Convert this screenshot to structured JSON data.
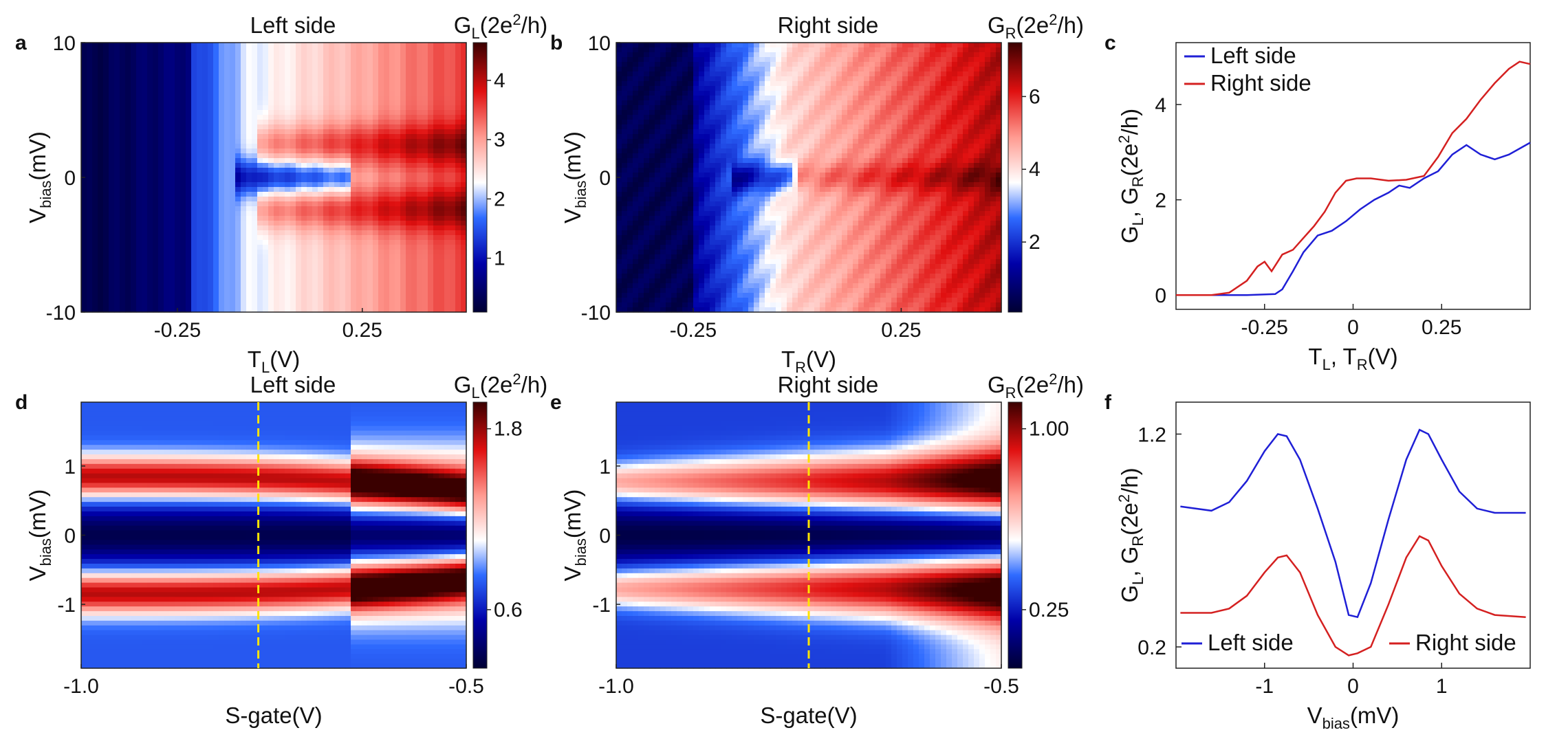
{
  "panels": {
    "a": {
      "letter": "a",
      "title": "Left side",
      "cb_label": {
        "pre": "G",
        "sub": "L",
        "mid": "(2e",
        "sup": "2",
        "post": "/h)"
      },
      "xlabel": {
        "main": "T",
        "sub": "L",
        "post": "(V)"
      },
      "ylabel": {
        "main": "V",
        "sub": "bias",
        "post": "(mV)"
      },
      "xticks": [
        "-0.25",
        "0.25"
      ],
      "yticks": [
        "10",
        "0",
        "-10"
      ],
      "cbticks": [
        "4",
        "3",
        "2",
        "1"
      ]
    },
    "b": {
      "letter": "b",
      "title": "Right side",
      "cb_label": {
        "pre": "G",
        "sub": "R",
        "mid": "(2e",
        "sup": "2",
        "post": "/h)"
      },
      "xlabel": {
        "main": "T",
        "sub": "R",
        "post": "(V)"
      },
      "ylabel": {
        "main": "V",
        "sub": "bias",
        "post": "(mV)"
      },
      "xticks": [
        "-0.25",
        "0.25"
      ],
      "yticks": [
        "10",
        "0",
        "-10"
      ],
      "cbticks": [
        "6",
        "4",
        "2"
      ]
    },
    "d": {
      "letter": "d",
      "title": "Left side",
      "cb_label": {
        "pre": "G",
        "sub": "L",
        "mid": "(2e",
        "sup": "2",
        "post": "/h)"
      },
      "xlabel": {
        "main": "S-gate(V)"
      },
      "ylabel": {
        "main": "V",
        "sub": "bias",
        "post": "(mV)"
      },
      "xticks": [
        "-1.0",
        "-0.5"
      ],
      "yticks": [
        "1",
        "0",
        "-1"
      ],
      "cbticks": [
        "1.8",
        "0.6"
      ]
    },
    "e": {
      "letter": "e",
      "title": "Right side",
      "cb_label": {
        "pre": "G",
        "sub": "R",
        "mid": "(2e",
        "sup": "2",
        "post": "/h)"
      },
      "xlabel": {
        "main": "S-gate(V)"
      },
      "ylabel": {
        "main": "V",
        "sub": "bias",
        "post": "(mV)"
      },
      "xticks": [
        "-1.0",
        "-0.5"
      ],
      "yticks": [
        "1",
        "0",
        "-1"
      ],
      "cbticks": [
        "1.00",
        "0.25"
      ]
    },
    "c": {
      "letter": "c",
      "xlabel": {
        "a": "T",
        "asub": "L",
        "b": ", T",
        "bsub": "R",
        "post": "(V)"
      },
      "ylabel": {
        "a": "G",
        "asub": "L",
        "b": ", G",
        "bsub": "R",
        "c": "(2e",
        "sup": "2",
        "post": "/h)"
      }
    },
    "f": {
      "letter": "f",
      "xlabel": {
        "main": "V",
        "sub": "bias",
        "post": "(mV)"
      },
      "ylabel": {
        "a": "G",
        "asub": "L",
        "b": ", G",
        "bsub": "R",
        "c": "(2e",
        "sup": "2",
        "post": "/h)"
      }
    }
  },
  "colors": {
    "left": "#1f1fd6",
    "right": "#d42020",
    "marker": "#ffe400"
  },
  "chart_data": [
    {
      "id": "c",
      "type": "line",
      "xlim": [
        -0.5,
        0.5
      ],
      "ylim": [
        -0.3,
        5.3
      ],
      "xticks": [
        -0.25,
        0,
        0.25
      ],
      "xticklabels": [
        "-0.25",
        "0",
        "0.25"
      ],
      "yticks": [
        0,
        2,
        4
      ],
      "yticklabels": [
        "0",
        "2",
        "4"
      ],
      "legend": "top-left",
      "series": [
        {
          "name": "Left side",
          "color": "#1f1fd6",
          "x": [
            -0.5,
            -0.3,
            -0.22,
            -0.2,
            -0.17,
            -0.14,
            -0.1,
            -0.06,
            -0.02,
            0.02,
            0.06,
            0.1,
            0.13,
            0.16,
            0.2,
            0.24,
            0.28,
            0.32,
            0.36,
            0.4,
            0.44,
            0.5
          ],
          "y": [
            0,
            0,
            0.02,
            0.12,
            0.5,
            0.9,
            1.25,
            1.35,
            1.55,
            1.8,
            2.0,
            2.15,
            2.3,
            2.25,
            2.45,
            2.6,
            2.95,
            3.15,
            2.95,
            2.85,
            2.95,
            3.2
          ]
        },
        {
          "name": "Right side",
          "color": "#d42020",
          "x": [
            -0.5,
            -0.4,
            -0.35,
            -0.3,
            -0.27,
            -0.25,
            -0.23,
            -0.2,
            -0.17,
            -0.14,
            -0.11,
            -0.08,
            -0.05,
            -0.02,
            0.01,
            0.05,
            0.1,
            0.15,
            0.2,
            0.24,
            0.28,
            0.32,
            0.36,
            0.4,
            0.44,
            0.47,
            0.5
          ],
          "y": [
            0,
            0,
            0.05,
            0.3,
            0.6,
            0.7,
            0.5,
            0.85,
            0.95,
            1.2,
            1.45,
            1.75,
            2.15,
            2.4,
            2.45,
            2.45,
            2.4,
            2.42,
            2.5,
            2.9,
            3.4,
            3.7,
            4.1,
            4.45,
            4.75,
            4.9,
            4.85
          ]
        }
      ]
    },
    {
      "id": "f",
      "type": "line",
      "xlim": [
        -2.0,
        2.0
      ],
      "ylim": [
        0.1,
        1.35
      ],
      "xticks": [
        -1,
        0,
        1
      ],
      "xticklabels": [
        "-1",
        "0",
        "1"
      ],
      "yticks": [
        0.2,
        1.2
      ],
      "yticklabels": [
        "0.2",
        "1.2"
      ],
      "legend": "bottom",
      "series": [
        {
          "name": "Left side",
          "color": "#1f1fd6",
          "x": [
            -1.95,
            -1.6,
            -1.4,
            -1.2,
            -1.0,
            -0.85,
            -0.75,
            -0.6,
            -0.4,
            -0.2,
            -0.05,
            0.05,
            0.2,
            0.4,
            0.6,
            0.75,
            0.85,
            1.0,
            1.2,
            1.4,
            1.6,
            1.95
          ],
          "y": [
            0.86,
            0.84,
            0.88,
            0.98,
            1.12,
            1.2,
            1.19,
            1.08,
            0.85,
            0.6,
            0.35,
            0.34,
            0.5,
            0.8,
            1.08,
            1.22,
            1.2,
            1.08,
            0.93,
            0.85,
            0.83,
            0.83
          ]
        },
        {
          "name": "Right side",
          "color": "#d42020",
          "x": [
            -1.95,
            -1.6,
            -1.4,
            -1.2,
            -1.0,
            -0.85,
            -0.75,
            -0.6,
            -0.4,
            -0.2,
            -0.05,
            0.05,
            0.2,
            0.4,
            0.6,
            0.75,
            0.85,
            1.0,
            1.2,
            1.4,
            1.6,
            1.95
          ],
          "y": [
            0.36,
            0.36,
            0.38,
            0.44,
            0.55,
            0.62,
            0.63,
            0.55,
            0.35,
            0.2,
            0.16,
            0.17,
            0.2,
            0.4,
            0.62,
            0.72,
            0.7,
            0.58,
            0.45,
            0.38,
            0.35,
            0.34
          ]
        }
      ]
    }
  ]
}
